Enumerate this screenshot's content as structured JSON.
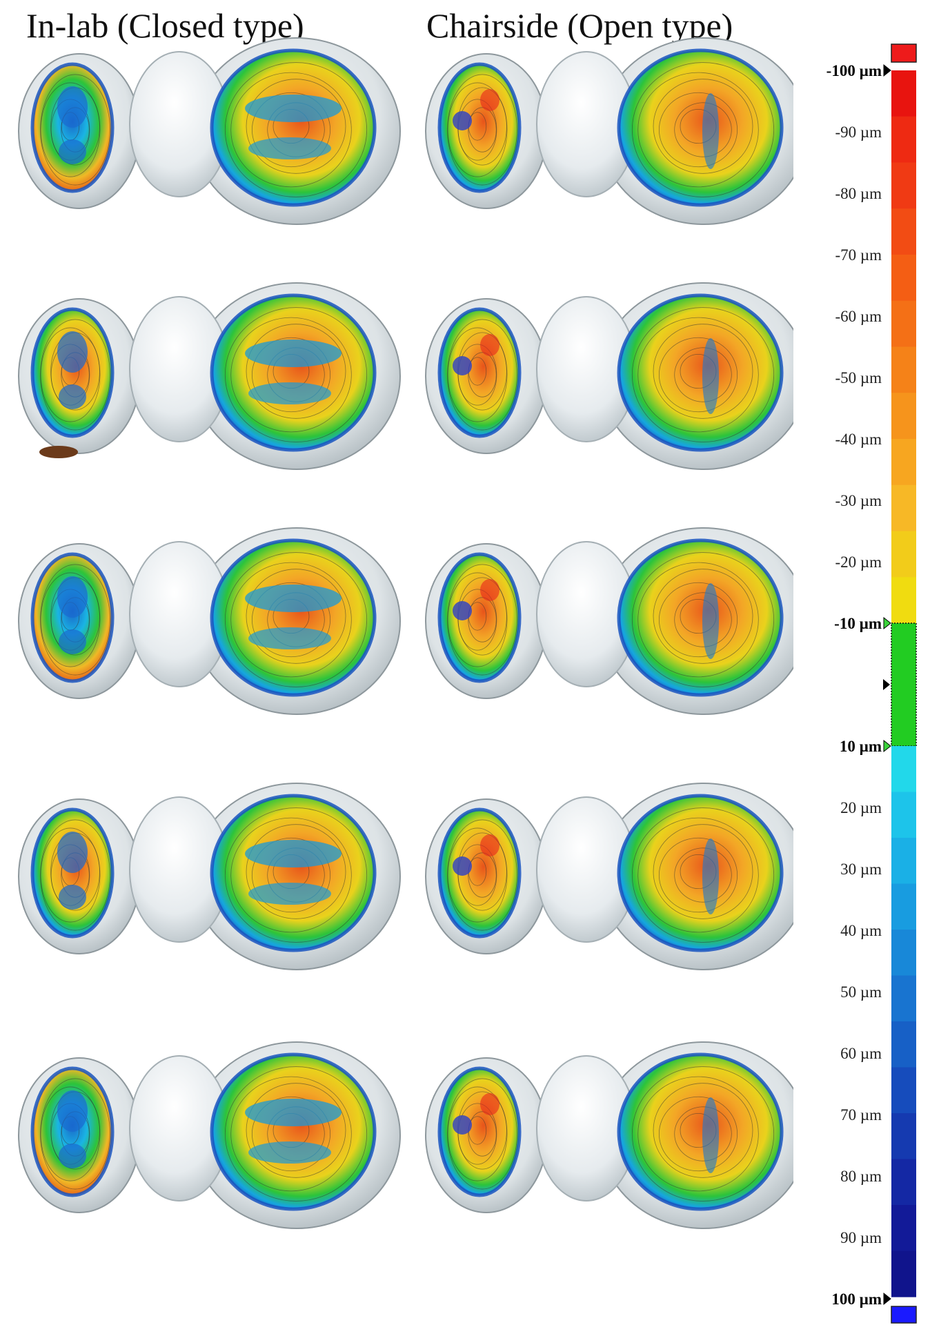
{
  "titles": {
    "left": "In-lab (Closed type)",
    "right": "Chairside (Open type)"
  },
  "grid": {
    "rows": 5,
    "columns": 2
  },
  "color_scale": {
    "labels": [
      {
        "text": "-100 µm",
        "bold": true,
        "marker": "black"
      },
      {
        "text": "-90 µm",
        "bold": false
      },
      {
        "text": "-80 µm",
        "bold": false
      },
      {
        "text": "-70 µm",
        "bold": false
      },
      {
        "text": "-60 µm",
        "bold": false
      },
      {
        "text": "-50 µm",
        "bold": false
      },
      {
        "text": "-40 µm",
        "bold": false
      },
      {
        "text": "-30 µm",
        "bold": false
      },
      {
        "text": "-20 µm",
        "bold": false
      },
      {
        "text": "-10 µm",
        "bold": true,
        "marker": "green"
      },
      {
        "text": "10 µm",
        "bold": true,
        "marker": "green"
      },
      {
        "text": "20 µm",
        "bold": false
      },
      {
        "text": "30 µm",
        "bold": false
      },
      {
        "text": "40 µm",
        "bold": false
      },
      {
        "text": "50 µm",
        "bold": false
      },
      {
        "text": "60 µm",
        "bold": false
      },
      {
        "text": "70 µm",
        "bold": false
      },
      {
        "text": "80 µm",
        "bold": false
      },
      {
        "text": "90 µm",
        "bold": false
      },
      {
        "text": "100 µm",
        "bold": true,
        "marker": "black"
      }
    ],
    "colors": {
      "over": "#ee1b1b",
      "under": "#1a1aff",
      "tolerance": "#22cc22",
      "negative_band": [
        "#e8140f",
        "#ee2a12",
        "#f03a14",
        "#f24c14",
        "#f45e14",
        "#f47016",
        "#f58218",
        "#f6941c",
        "#f7a620",
        "#f7b826",
        "#f2cc1a",
        "#f0dc10"
      ],
      "positive_band": [
        "#22d8ea",
        "#1dc4ea",
        "#1ab0e6",
        "#189ce0",
        "#1888d8",
        "#1874d0",
        "#1760c6",
        "#164cbc",
        "#153ab0",
        "#1428a4",
        "#121a98",
        "#10148c"
      ]
    }
  }
}
